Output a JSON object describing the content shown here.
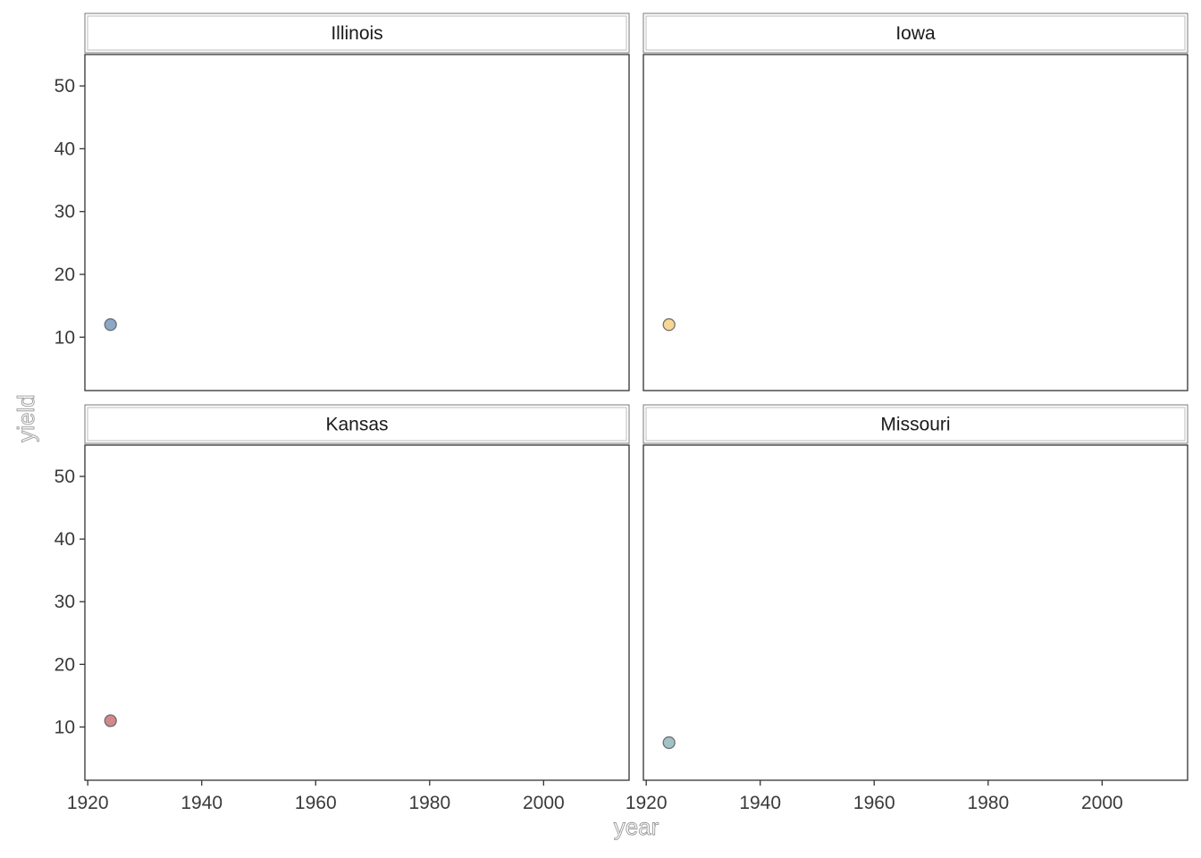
{
  "chart_data": {
    "type": "scatter",
    "facet_by": "state",
    "xlabel": "year",
    "ylabel": "yield",
    "xlim": [
      1919.5,
      2015
    ],
    "ylim": [
      1.5,
      55
    ],
    "x_ticks": [
      1920,
      1940,
      1960,
      1980,
      2000
    ],
    "y_ticks": [
      10,
      20,
      30,
      40,
      50
    ],
    "grid": false,
    "legend": "none",
    "panels": [
      {
        "title": "Illinois",
        "color": "#4e79a7",
        "points": [
          {
            "x": 1924,
            "y": 12
          }
        ]
      },
      {
        "title": "Iowa",
        "color": "#f1c15a",
        "points": [
          {
            "x": 1924,
            "y": 12
          }
        ]
      },
      {
        "title": "Kansas",
        "color": "#b44b50",
        "points": [
          {
            "x": 1924,
            "y": 11
          }
        ]
      },
      {
        "title": "Missouri",
        "color": "#6fa3a6",
        "points": [
          {
            "x": 1924,
            "y": 7.5
          }
        ]
      }
    ]
  }
}
